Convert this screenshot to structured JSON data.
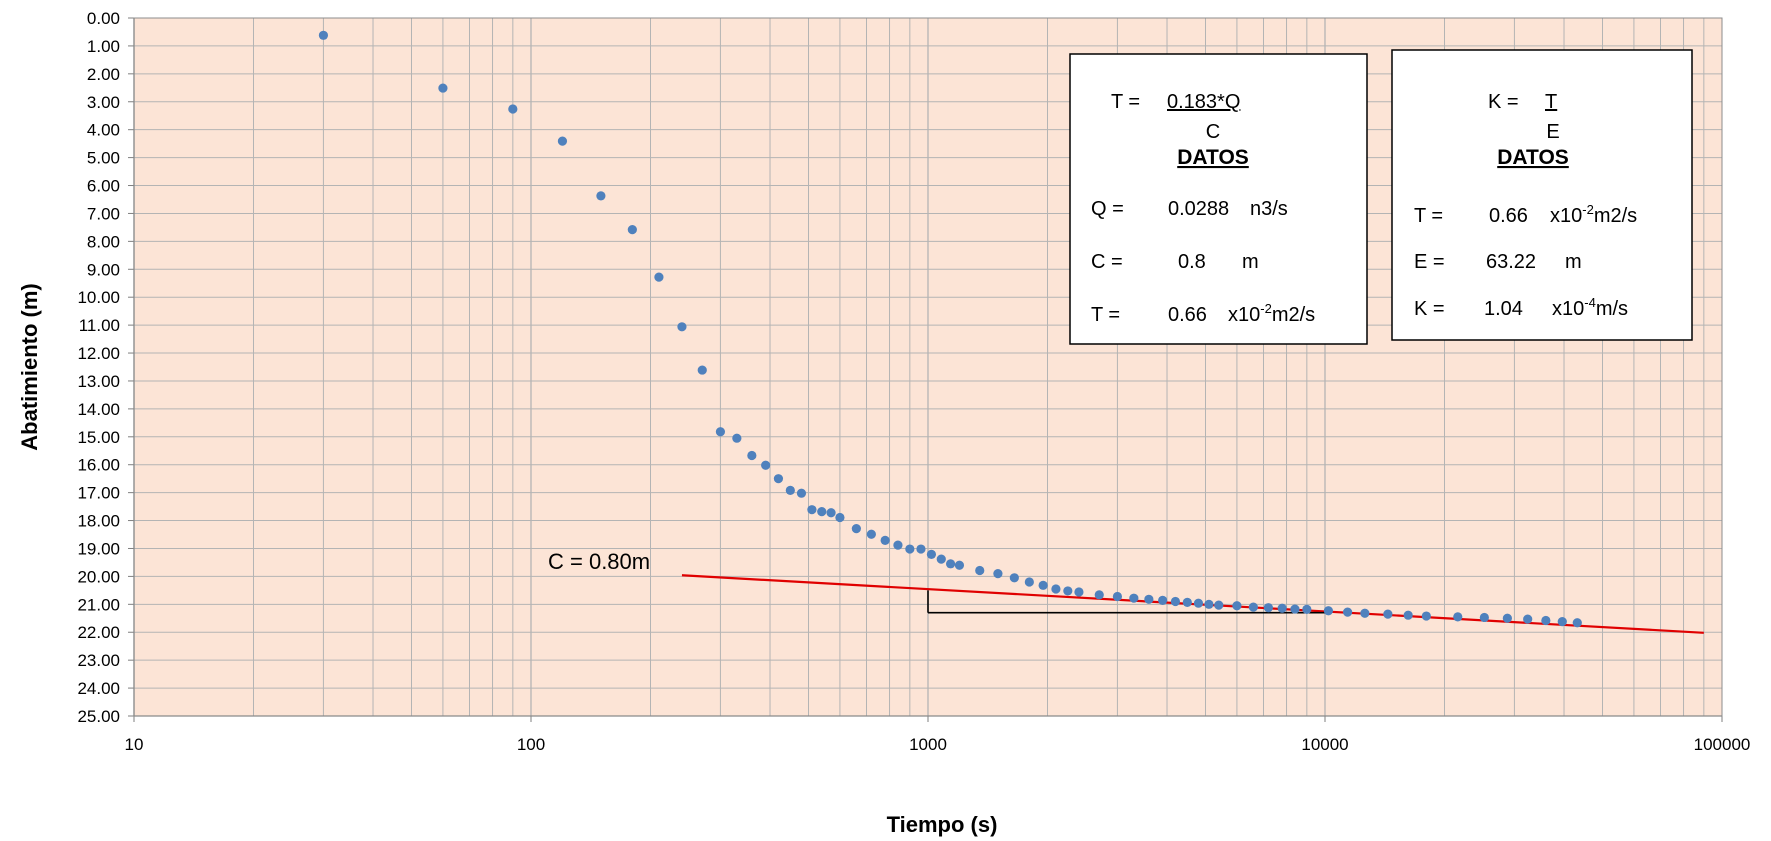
{
  "colors": {
    "plot_bg": "#FCE4D6",
    "grid": "#B4B4B4",
    "points": "#4F81BD",
    "fit_line": "#E00000",
    "axis": "#7F7F7F"
  },
  "chart_data": {
    "type": "scatter",
    "xlabel": "Tiempo (s)",
    "ylabel": "Abatimiento (m)",
    "xscale": "log",
    "xlim": [
      10,
      100000
    ],
    "ylim": [
      0,
      25
    ],
    "y_inverted": true,
    "x_ticks": [
      "10",
      "100",
      "1000",
      "10000",
      "100000"
    ],
    "y_ticks": [
      "0.00",
      "1.00",
      "2.00",
      "3.00",
      "4.00",
      "5.00",
      "6.00",
      "7.00",
      "8.00",
      "9.00",
      "10.00",
      "11.00",
      "12.00",
      "13.00",
      "14.00",
      "15.00",
      "16.00",
      "17.00",
      "18.00",
      "19.00",
      "20.00",
      "21.00",
      "22.00",
      "23.00",
      "24.00",
      "25.00"
    ],
    "grid": true,
    "series": [
      {
        "type": "scatter",
        "x": [
          30,
          60,
          90,
          120,
          150,
          180,
          210,
          240,
          270,
          300,
          330,
          360,
          390,
          420,
          450,
          480,
          510,
          540,
          570,
          600,
          660,
          720,
          780,
          840,
          900,
          960,
          1020,
          1080,
          1140,
          1200,
          1350,
          1500,
          1650,
          1800,
          1950,
          2100,
          2250,
          2400,
          2700,
          3000,
          3300,
          3600,
          3900,
          4200,
          4500,
          4800,
          5100,
          5400,
          6000,
          6600,
          7200,
          7800,
          8400,
          9000,
          10200,
          11400,
          12600,
          14400,
          16200,
          18000,
          21600,
          25200,
          28800,
          32400,
          36000,
          39600,
          43200
        ],
        "y": [
          0.62,
          2.51,
          3.26,
          4.41,
          6.37,
          7.58,
          9.28,
          11.06,
          12.61,
          14.82,
          15.05,
          15.67,
          16.02,
          16.5,
          16.92,
          17.02,
          17.61,
          17.68,
          17.72,
          17.89,
          18.29,
          18.49,
          18.71,
          18.88,
          19.02,
          19.02,
          19.21,
          19.38,
          19.55,
          19.6,
          19.79,
          19.9,
          20.05,
          20.2,
          20.32,
          20.45,
          20.52,
          20.56,
          20.66,
          20.72,
          20.78,
          20.82,
          20.86,
          20.9,
          20.93,
          20.96,
          21.0,
          21.03,
          21.05,
          21.1,
          21.12,
          21.14,
          21.17,
          21.18,
          21.23,
          21.28,
          21.32,
          21.35,
          21.39,
          21.42,
          21.45,
          21.47,
          21.5,
          21.53,
          21.58,
          21.62,
          21.66
        ]
      },
      {
        "type": "line",
        "x": [
          240,
          90000
        ],
        "y": [
          19.96,
          22.02
        ]
      }
    ],
    "annotations": {
      "slope_label": "C = 0.80m",
      "slope_triangle": {
        "x": [
          1000,
          10000
        ],
        "y": [
          20.5,
          21.3
        ]
      }
    }
  },
  "box_left": {
    "formula_lhs": "T  =",
    "formula_num": "0.183*Q",
    "formula_den": "C",
    "heading": "DATOS",
    "rows": [
      {
        "name": "Q  =",
        "value": "0.0288",
        "unit": "n3/s",
        "exp": ""
      },
      {
        "name": "C  =",
        "value": "0.8",
        "unit": "m",
        "exp": ""
      },
      {
        "name": "T  =",
        "value": "0.66",
        "unit": "x10",
        "exp": "-2",
        "unit_after": "m2/s"
      }
    ]
  },
  "box_right": {
    "formula_lhs": "K  =",
    "formula_num": "T",
    "formula_den": "E",
    "heading": "DATOS",
    "rows": [
      {
        "name": "T  =",
        "value": "0.66",
        "unit": "x10",
        "exp": "-2",
        "unit_after": "m2/s"
      },
      {
        "name": "E  =",
        "value": "63.22",
        "unit": "m",
        "exp": ""
      },
      {
        "name": "K  =",
        "value": "1.04",
        "unit": "x10",
        "exp": "-4",
        "unit_after": "m/s"
      }
    ]
  }
}
